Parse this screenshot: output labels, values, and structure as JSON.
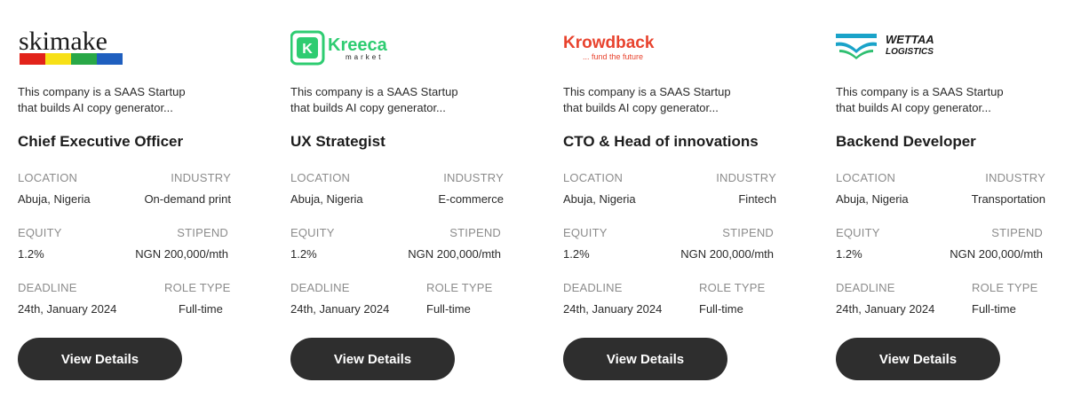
{
  "cards": [
    {
      "logo": {
        "text": "skimake",
        "colors": [
          "#e2231a",
          "#f7e017",
          "#29a847",
          "#1f5fbf"
        ]
      },
      "description_line1": "This company is a SAAS Startup",
      "description_line2": "that builds AI copy generator...",
      "title": "Chief Executive Officer",
      "location_label": "LOCATION",
      "location": "Abuja, Nigeria",
      "industry_label": "INDUSTRY",
      "industry": "On-demand print",
      "equity_label": "EQUITY",
      "equity": "1.2%",
      "stipend_label": "STIPEND",
      "stipend": "NGN 200,000/mth",
      "deadline_label": "DEADLINE",
      "deadline": "24th, January 2024",
      "roletype_label": "ROLE TYPE",
      "roletype": "Full-time",
      "button": "View Details"
    },
    {
      "logo": {
        "text": "Kreeca",
        "subtext": "market",
        "mark": "K",
        "color": "#2ecc71"
      },
      "description_line1": "This company is a SAAS Startup",
      "description_line2": "that builds AI copy generator...",
      "title": "UX Strategist",
      "location_label": "LOCATION",
      "location": "Abuja, Nigeria",
      "industry_label": "INDUSTRY",
      "industry": "E-commerce",
      "equity_label": "EQUITY",
      "equity": "1.2%",
      "stipend_label": "STIPEND",
      "stipend": "NGN 200,000/mth",
      "deadline_label": "DEADLINE",
      "deadline": "24th, January 2024",
      "roletype_label": "ROLE TYPE",
      "roletype": "Full-time",
      "button": "View Details"
    },
    {
      "logo": {
        "text": "Krowdback",
        "subtext": "... fund the future",
        "color": "#e8432e"
      },
      "description_line1": "This company is a SAAS Startup",
      "description_line2": "that builds AI copy generator...",
      "title": "CTO & Head of innovations",
      "location_label": "LOCATION",
      "location": "Abuja, Nigeria",
      "industry_label": "INDUSTRY",
      "industry": "Fintech",
      "equity_label": "EQUITY",
      "equity": "1.2%",
      "stipend_label": "STIPEND",
      "stipend": "NGN 200,000/mth",
      "deadline_label": "DEADLINE",
      "deadline": "24th, January 2024",
      "roletype_label": "ROLE TYPE",
      "roletype": "Full-time",
      "button": "View Details"
    },
    {
      "logo": {
        "text": "WETTAA",
        "subtext": "LOGISTICS",
        "colors": [
          "#1aa3c9",
          "#2fbf71"
        ]
      },
      "description_line1": "This company is a SAAS Startup",
      "description_line2": "that builds AI copy generator...",
      "title": "Backend Developer",
      "location_label": "LOCATION",
      "location": "Abuja, Nigeria",
      "industry_label": "INDUSTRY",
      "industry": "Transportation",
      "equity_label": "EQUITY",
      "equity": "1.2%",
      "stipend_label": "STIPEND",
      "stipend": "NGN 200,000/mth",
      "deadline_label": "DEADLINE",
      "deadline": "24th, January 2024",
      "roletype_label": "ROLE TYPE",
      "roletype": "Full-time",
      "button": "View Details"
    }
  ]
}
